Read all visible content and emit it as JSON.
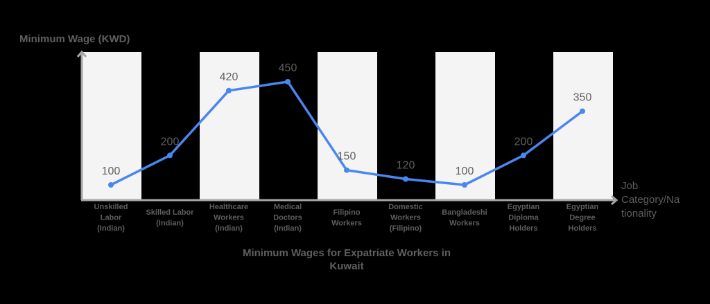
{
  "chart_data": {
    "type": "line",
    "title": "Minimum Wages for Expatriate Workers in Kuwait",
    "title_lines": [
      "Minimum Wages for Expatriate Workers in",
      "Kuwait"
    ],
    "xlabel": "Job Category/Nationality",
    "xlabel_lines": [
      "Job",
      "Category/Na",
      "tionality"
    ],
    "ylabel": "Minimum Wage (KWD)",
    "categories": [
      "Unskilled Labor (Indian)",
      "Skilled Labor (Indian)",
      "Healthcare Workers (Indian)",
      "Medical Doctors (Indian)",
      "Filipino Workers",
      "Domestic Workers (Filipino)",
      "Bangladeshi Workers",
      "Egyptian Diploma Holders",
      "Egyptian Degree Holders"
    ],
    "category_lines": [
      [
        "Unskilled",
        "Labor",
        "(Indian)"
      ],
      [
        "Skilled Labor",
        "(Indian)"
      ],
      [
        "Healthcare",
        "Workers",
        "(Indian)"
      ],
      [
        "Medical",
        "Doctors",
        "(Indian)"
      ],
      [
        "Filipino",
        "Workers"
      ],
      [
        "Domestic",
        "Workers",
        "(Filipino)"
      ],
      [
        "Bangladeshi",
        "Workers"
      ],
      [
        "Egyptian",
        "Diploma",
        "Holders"
      ],
      [
        "Egyptian",
        "Degree",
        "Holders"
      ]
    ],
    "series": [
      {
        "name": "Minimum Wage (KWD)",
        "values": [
          100,
          200,
          420,
          450,
          150,
          120,
          100,
          200,
          350
        ],
        "color": "#4a86f0"
      }
    ],
    "data_labels": [
      "100",
      "200",
      "420",
      "450",
      "150",
      "120",
      "100",
      "200",
      "350"
    ],
    "grid": false,
    "alternating_bands": true,
    "legend": "none"
  },
  "colors": {
    "background": "#000000",
    "band": "#f4f4f4",
    "axis": "#a6a6a6",
    "text": "#5f5f5f",
    "line": "#4a86f0"
  }
}
